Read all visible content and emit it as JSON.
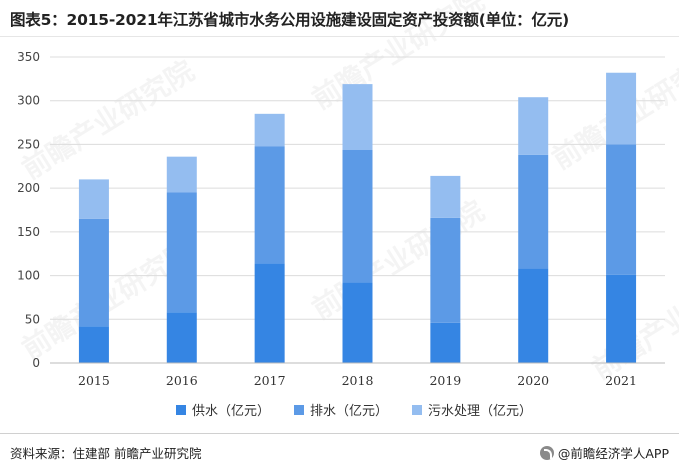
{
  "title": "图表5：2015-2021年江苏省城市水务公用设施建设固定资产投资额(单位：亿元)",
  "source": "资料来源：住建部 前瞻产业研究院",
  "brand": "@前瞻经济学人APP",
  "watermark": "前瞻产业研究院",
  "colors": {
    "supply": "#3585e3",
    "drainage": "#5c9ae6",
    "sewage": "#94bdf0",
    "grid": "#dcdcdc",
    "axis": "#bbbbbb"
  },
  "chart_data": {
    "type": "bar",
    "stacked": true,
    "categories": [
      "2015",
      "2016",
      "2017",
      "2018",
      "2019",
      "2020",
      "2021"
    ],
    "series": [
      {
        "name": "供水（亿元）",
        "values": [
          42,
          58,
          114,
          92,
          46,
          108,
          101
        ]
      },
      {
        "name": "排水（亿元）",
        "values": [
          123,
          137,
          134,
          152,
          120,
          130,
          149
        ]
      },
      {
        "name": "污水处理（亿元）",
        "values": [
          45,
          41,
          37,
          75,
          48,
          66,
          82
        ]
      }
    ],
    "ylim": [
      0,
      350
    ],
    "yticks": [
      0,
      50,
      100,
      150,
      200,
      250,
      300,
      350
    ],
    "grid": true,
    "legend": "bottom"
  }
}
